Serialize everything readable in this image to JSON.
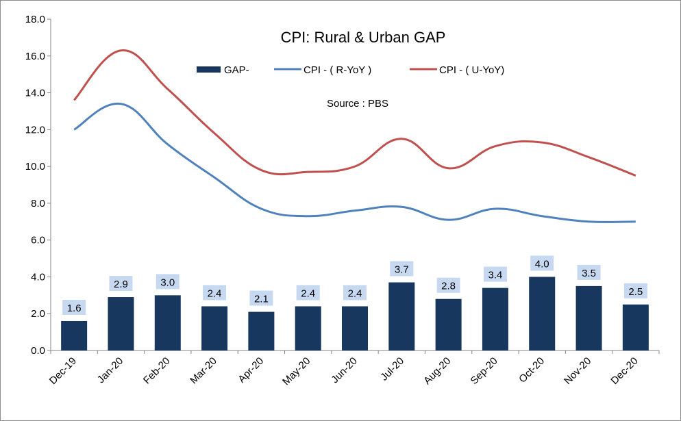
{
  "chart_data": {
    "type": "bar+line",
    "title": "CPI: Rural & Urban GAP",
    "annotation": "Source : PBS",
    "categories": [
      "Dec-19",
      "Jan-20",
      "Feb-20",
      "Mar-20",
      "Apr-20",
      "May-20",
      "Jun-20",
      "Jul-20",
      "Aug-20",
      "Sep-20",
      "Oct-20",
      "Nov-20",
      "Dec-20"
    ],
    "series": [
      {
        "name": "GAP-",
        "type": "bar",
        "color": "#17375e",
        "values": [
          1.6,
          2.9,
          3.0,
          2.4,
          2.1,
          2.4,
          2.4,
          3.7,
          2.8,
          3.4,
          4.0,
          3.5,
          2.5
        ]
      },
      {
        "name": "CPI - ( R-YoY )",
        "type": "line",
        "color": "#4f81bd",
        "values": [
          12.0,
          13.4,
          11.2,
          9.4,
          7.7,
          7.3,
          7.6,
          7.8,
          7.1,
          7.7,
          7.3,
          7.0,
          7.0
        ]
      },
      {
        "name": "CPI - ( U-YoY)",
        "type": "line",
        "color": "#c0504d",
        "values": [
          13.6,
          16.3,
          14.2,
          11.8,
          9.8,
          9.7,
          10.0,
          11.5,
          9.9,
          11.1,
          11.3,
          10.5,
          9.5
        ]
      }
    ],
    "data_labels": [
      "1.6",
      "2.9",
      "3.0",
      "2.4",
      "2.1",
      "2.4",
      "2.4",
      "3.7",
      "2.8",
      "3.4",
      "4.0",
      "3.5",
      "2.5"
    ],
    "data_label_bg": "#c6d9f1",
    "ylim": [
      0,
      18
    ],
    "yticks": [
      "0.0",
      "2.0",
      "4.0",
      "6.0",
      "8.0",
      "10.0",
      "12.0",
      "14.0",
      "16.0",
      "18.0"
    ],
    "grid": false,
    "legend_position": "top-center"
  }
}
